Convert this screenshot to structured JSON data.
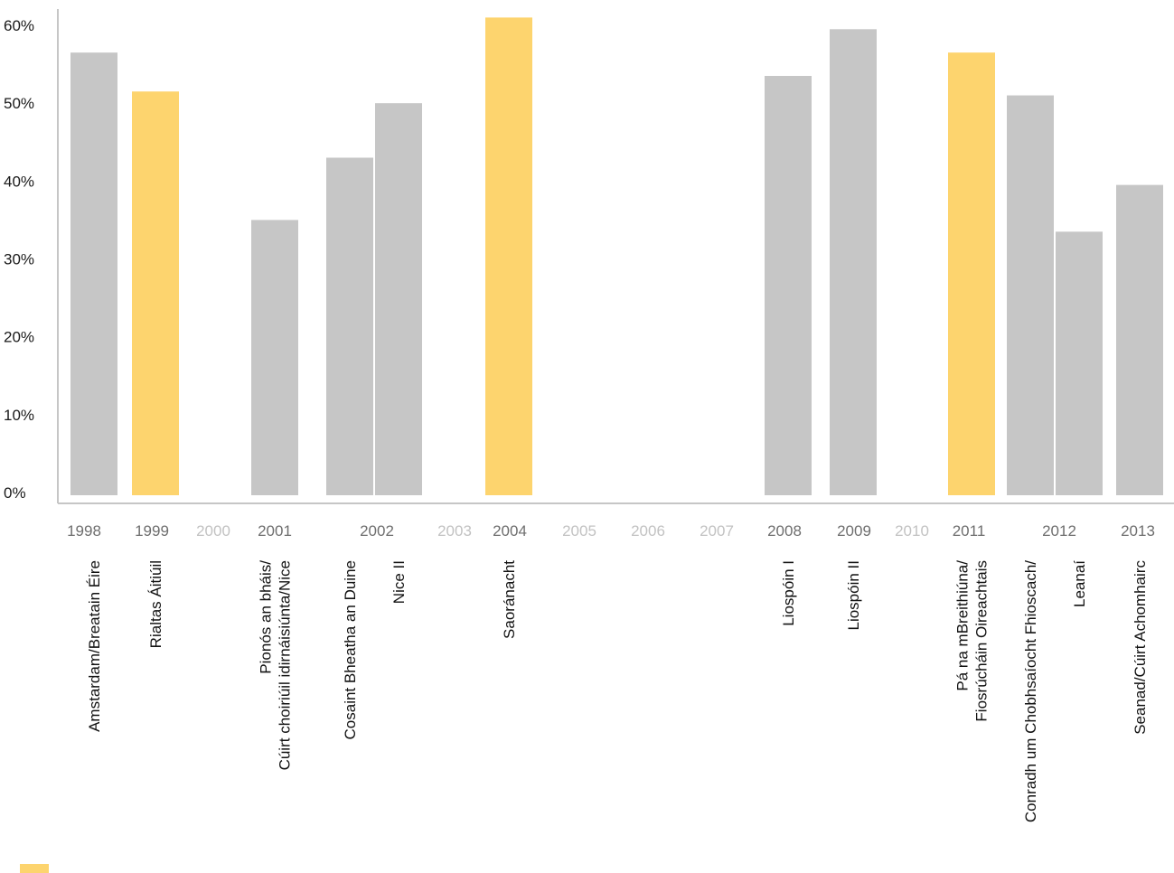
{
  "chart_data": {
    "type": "bar",
    "title": "",
    "xlabel": "",
    "ylabel": "",
    "ylim": [
      0,
      60
    ],
    "y_ticks": [
      "0%",
      "10%",
      "20%",
      "30%",
      "40%",
      "50%",
      "60%"
    ],
    "y_tick_values": [
      0,
      10,
      20,
      30,
      40,
      50,
      60
    ],
    "grid": false,
    "years": [
      {
        "label": "1998",
        "active": true
      },
      {
        "label": "1999",
        "active": true
      },
      {
        "label": "2000",
        "active": false
      },
      {
        "label": "2001",
        "active": true
      },
      {
        "label": "2002",
        "active": true
      },
      {
        "label": "2003",
        "active": false
      },
      {
        "label": "2004",
        "active": true
      },
      {
        "label": "2005",
        "active": false
      },
      {
        "label": "2006",
        "active": false
      },
      {
        "label": "2007",
        "active": false
      },
      {
        "label": "2008",
        "active": true
      },
      {
        "label": "2009",
        "active": true
      },
      {
        "label": "2010",
        "active": false
      },
      {
        "label": "2011",
        "active": true
      },
      {
        "label": "2012",
        "active": true
      },
      {
        "label": "2013",
        "active": true
      }
    ],
    "bars": [
      {
        "year": "1998",
        "lines": [
          "Amstardam/Breatain Éire"
        ],
        "value": 56.5,
        "highlight": false
      },
      {
        "year": "1999",
        "lines": [
          "Rialtas Áitiúil"
        ],
        "value": 51.5,
        "highlight": true
      },
      {
        "year": "2001",
        "lines": [
          "Pionós an bháis/",
          "Cúirt choiriúil idirnáisiúnta/Nice"
        ],
        "value": 35.0,
        "highlight": false
      },
      {
        "year": "2002",
        "lines": [
          "Cosaint Bheatha an Duine"
        ],
        "value": 43.0,
        "highlight": false
      },
      {
        "year": "2002",
        "lines": [
          "Nice II"
        ],
        "value": 50.0,
        "highlight": false
      },
      {
        "year": "2004",
        "lines": [
          "Saoránacht"
        ],
        "value": 61.0,
        "highlight": true
      },
      {
        "year": "2008",
        "lines": [
          "Liospóin I"
        ],
        "value": 53.5,
        "highlight": false
      },
      {
        "year": "2009",
        "lines": [
          "Liospóin II"
        ],
        "value": 59.5,
        "highlight": false
      },
      {
        "year": "2011",
        "lines": [
          "Pá na mBreithiúna/",
          "Fiosrúcháin Oireachtais"
        ],
        "value": 56.5,
        "highlight": true
      },
      {
        "year": "2012",
        "lines": [
          "Conradh um Chobhsaíocht Fhioscach/"
        ],
        "value": 51.0,
        "highlight": false
      },
      {
        "year": "2012",
        "lines": [
          "Leanaí"
        ],
        "value": 33.5,
        "highlight": false
      },
      {
        "year": "2013",
        "lines": [
          "Seanad/Cúirt Achomhairc"
        ],
        "value": 39.5,
        "highlight": false
      }
    ],
    "colors": {
      "bar": "#c6c6c6",
      "highlight": "#fdd46e",
      "axis": "#c6c6c6",
      "year_active": "#6e6e6e",
      "year_inactive": "#c2c2c2"
    }
  }
}
